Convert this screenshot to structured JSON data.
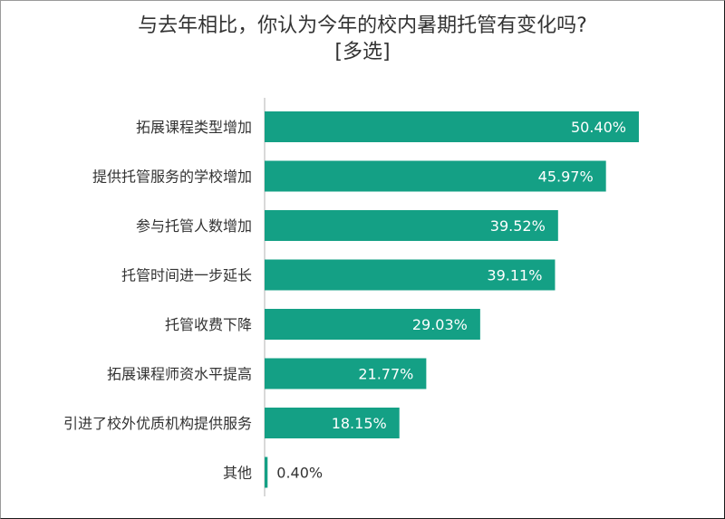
{
  "chart_data": {
    "type": "bar",
    "orientation": "horizontal",
    "title": "与去年相比，你认为今年的校内暑期托管有变化吗?",
    "subtitle": "[多选]",
    "categories": [
      "拓展课程类型增加",
      "提供托管服务的学校增加",
      "参与托管人数增加",
      "托管时间进一步延长",
      "托管收费下降",
      "拓展课程师资水平提高",
      "引进了校外优质机构提供服务",
      "其他"
    ],
    "values": [
      50.4,
      45.97,
      39.52,
      39.11,
      29.03,
      21.77,
      18.15,
      0.4
    ],
    "value_labels": [
      "50.40%",
      "45.97%",
      "39.52%",
      "39.11%",
      "29.03%",
      "21.77%",
      "18.15%",
      "0.40%"
    ],
    "unit": "%",
    "xlim": [
      0,
      62
    ],
    "bar_color": "#14a085",
    "axis_color": "#b3b3b3",
    "label_color": "#333333",
    "inside_label_color": "#ffffff",
    "grid": false,
    "legend": "none"
  }
}
